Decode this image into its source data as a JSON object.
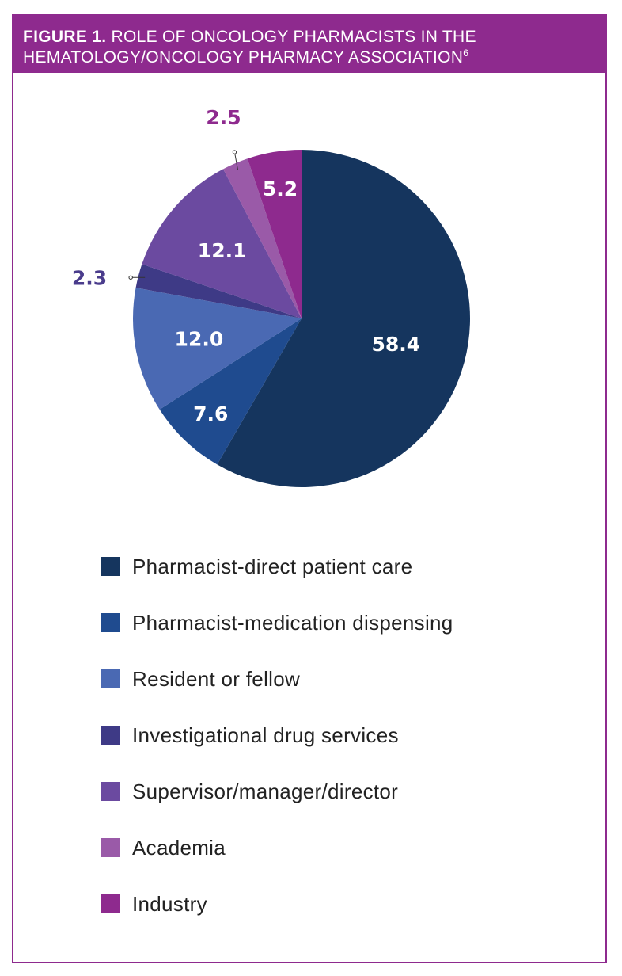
{
  "header": {
    "figure_label": "FIGURE 1.",
    "title": "ROLE OF ONCOLOGY PHARMACISTS IN THE HEMATOLOGY/ONCOLOGY PHARMACY ASSOCIATION",
    "reference": "6"
  },
  "colors": {
    "accent": "#8e2a8e",
    "label_text": "#ffffff"
  },
  "chart_data": {
    "type": "pie",
    "title": "ROLE OF ONCOLOGY PHARMACISTS IN THE HEMATOLOGY/ONCOLOGY PHARMACY ASSOCIATION",
    "units": "percent",
    "start": "12 o'clock, clockwise",
    "slices": [
      {
        "name": "Pharmacist-direct patient care",
        "value": 58.4,
        "label": "58.4",
        "color": "#15355e",
        "label_placement": "inside"
      },
      {
        "name": "Pharmacist-medication dispensing",
        "value": 7.6,
        "label": "7.6",
        "color": "#1f4b8f",
        "label_placement": "inside"
      },
      {
        "name": "Resident or fellow",
        "value": 12.0,
        "label": "12.0",
        "color": "#4a69b3",
        "label_placement": "inside"
      },
      {
        "name": "Investigational drug services",
        "value": 2.3,
        "label": "2.3",
        "color": "#3e3a86",
        "label_placement": "outside",
        "label_color": "#4a3c8c"
      },
      {
        "name": "Supervisor/manager/director",
        "value": 12.1,
        "label": "12.1",
        "color": "#6b4aa0",
        "label_placement": "inside"
      },
      {
        "name": "Academia",
        "value": 2.5,
        "label": "2.5",
        "color": "#9a5aa8",
        "label_placement": "outside",
        "label_color": "#8e2a8e"
      },
      {
        "name": "Industry",
        "value": 5.2,
        "label": "5.2",
        "color": "#8e2a8e",
        "label_placement": "inside"
      }
    ],
    "legend": {
      "placement": "bottom"
    }
  }
}
